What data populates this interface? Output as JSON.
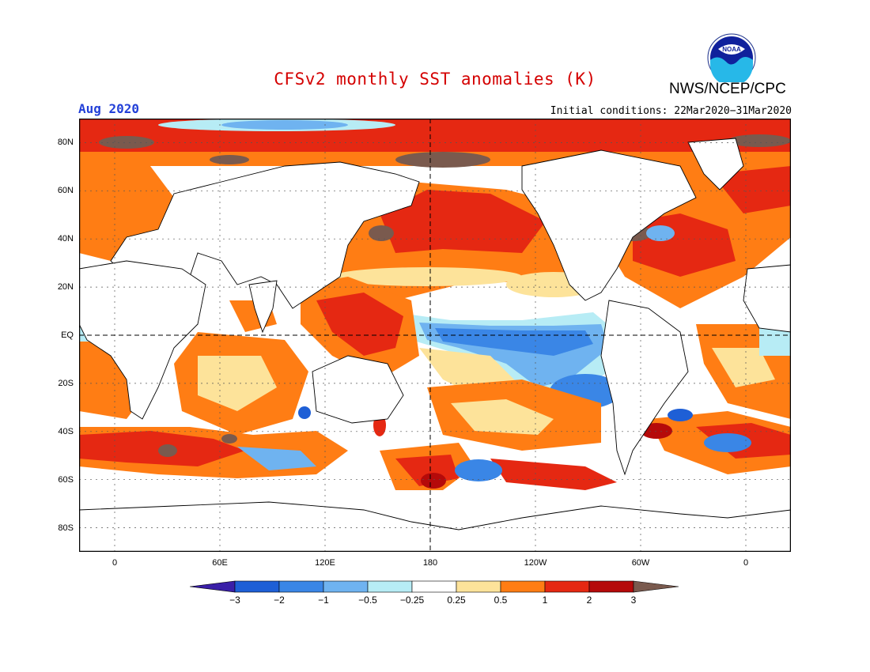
{
  "header": {
    "title": "CFSv2 monthly SST anomalies (K)",
    "month": "Aug 2020",
    "initial_conditions": "Initial conditions: 22Mar2020−31Mar2020",
    "agency": "NWS/NCEP/CPC",
    "logo_text": "NOAA"
  },
  "axes": {
    "lat_labels": [
      "80N",
      "60N",
      "40N",
      "20N",
      "EQ",
      "20S",
      "40S",
      "60S",
      "80S"
    ],
    "lon_labels": [
      "0",
      "60E",
      "120E",
      "180",
      "120W",
      "60W",
      "0"
    ]
  },
  "colorbar": {
    "labels": [
      "−3",
      "−2",
      "−1",
      "−0.5",
      "−0.25",
      "0.25",
      "0.5",
      "1",
      "2",
      "3"
    ],
    "colors": [
      "#3a1fa8",
      "#1e5fd6",
      "#3a86e6",
      "#6fb3f0",
      "#b7ecf5",
      "#ffffff",
      "#fde39a",
      "#ff7d14",
      "#e52812",
      "#b50a0a",
      "#7a5a4e"
    ]
  },
  "palette": {
    "land": "#ffffff",
    "coast": "#000000",
    "grid": "#555555"
  }
}
